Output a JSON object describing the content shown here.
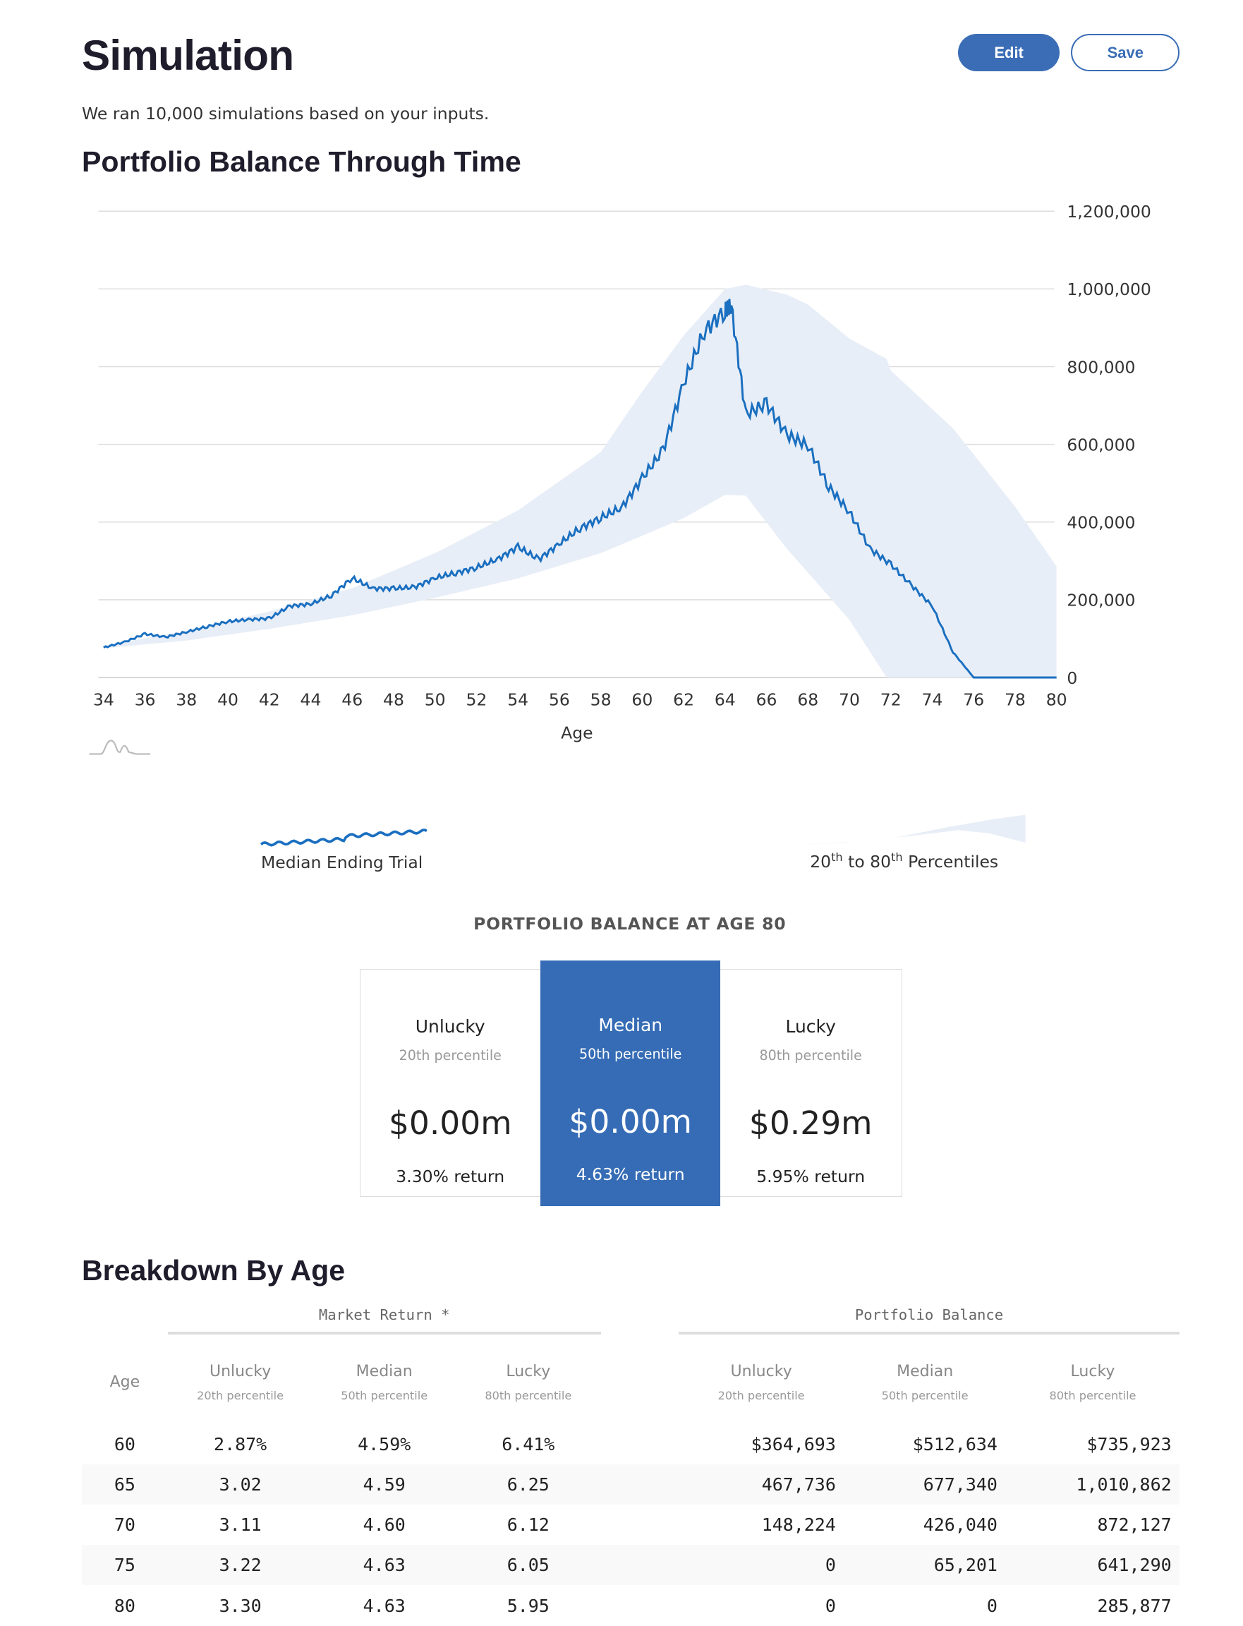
{
  "header": {
    "title": "Simulation",
    "edit_label": "Edit",
    "save_label": "Save",
    "subtitle": "We ran 10,000 simulations based on your inputs."
  },
  "colors": {
    "accent": "#3a6db6",
    "median_line": "#1a6fc0",
    "band": "#e8eef7",
    "card_highlight": "#356cb5"
  },
  "chart_section": {
    "title": "Portfolio Balance Through Time"
  },
  "chart_data": {
    "type": "line",
    "xlabel": "Age",
    "ylabel": "",
    "xlim": [
      34,
      80
    ],
    "ylim": [
      0,
      1200000
    ],
    "x_ticks": [
      "34",
      "36",
      "38",
      "40",
      "42",
      "44",
      "46",
      "48",
      "50",
      "52",
      "54",
      "56",
      "58",
      "60",
      "62",
      "64",
      "66",
      "68",
      "70",
      "72",
      "74",
      "76",
      "78",
      "80"
    ],
    "y_ticks": [
      "0",
      "200,000",
      "400,000",
      "600,000",
      "800,000",
      "1,000,000",
      "1,200,000"
    ],
    "grid": true,
    "series": [
      {
        "name": "Median Ending Trial",
        "type": "line",
        "x": [
          34,
          35,
          36,
          37,
          38,
          39,
          40,
          41,
          42,
          43,
          44,
          45,
          46,
          47,
          48,
          49,
          50,
          51,
          52,
          53,
          54,
          55,
          56,
          57,
          58,
          59,
          60,
          61,
          62,
          63,
          64,
          64.3,
          65,
          66,
          67,
          68,
          69,
          70,
          71,
          72,
          73,
          74,
          75,
          76,
          77,
          78,
          79,
          80
        ],
        "y": [
          77000,
          91000,
          112000,
          104000,
          117000,
          131000,
          144000,
          149000,
          152000,
          184000,
          189000,
          211000,
          256000,
          229000,
          229000,
          232000,
          256000,
          269000,
          283000,
          304000,
          336000,
          304000,
          344000,
          384000,
          411000,
          437000,
          512634,
          584000,
          757000,
          891000,
          944000,
          955000,
          677340,
          704000,
          624000,
          597000,
          491000,
          426040,
          331000,
          291000,
          237000,
          184000,
          65201,
          0,
          0,
          0,
          0,
          0
        ]
      },
      {
        "name": "20th to 80th Percentiles",
        "type": "band",
        "x": [
          34,
          38,
          42,
          46,
          50,
          54,
          58,
          60,
          62,
          64,
          65,
          67,
          68,
          70,
          71.8,
          72,
          75,
          78,
          80
        ],
        "lower": [
          75000,
          95000,
          125000,
          160000,
          205000,
          255000,
          320000,
          364693,
          410000,
          470000,
          467736,
          330000,
          270000,
          148224,
          0,
          0,
          0,
          0,
          0
        ],
        "upper": [
          82000,
          120000,
          170000,
          230000,
          320000,
          430000,
          580000,
          735923,
          880000,
          1000000,
          1010862,
          985000,
          960000,
          872127,
          820000,
          790000,
          641290,
          440000,
          285877
        ]
      }
    ],
    "legend": {
      "placement": "bottom",
      "items": [
        "Median Ending Trial",
        "20th to 80th Percentiles"
      ]
    }
  },
  "legend": {
    "median_label": "Median Ending Trial",
    "band_pre": "20",
    "band_sup1": "th",
    "band_mid": " to 80",
    "band_sup2": "th",
    "band_post": " Percentiles"
  },
  "balance": {
    "title": "PORTFOLIO BALANCE AT AGE 80",
    "cards": [
      {
        "title": "Unlucky",
        "percentile": "20th percentile",
        "value": "$0.00m",
        "return": "3.30% return"
      },
      {
        "title": "Median",
        "percentile": "50th percentile",
        "value": "$0.00m",
        "return": "4.63% return"
      },
      {
        "title": "Lucky",
        "percentile": "80th percentile",
        "value": "$0.29m",
        "return": "5.95% return"
      }
    ]
  },
  "breakdown": {
    "title": "Breakdown By Age",
    "group_market": "Market Return *",
    "group_balance": "Portfolio Balance",
    "age_header": "Age",
    "cols": [
      {
        "t": "Unlucky",
        "p": "20th percentile"
      },
      {
        "t": "Median",
        "p": "50th percentile"
      },
      {
        "t": "Lucky",
        "p": "80th percentile"
      }
    ],
    "rows": [
      [
        "60",
        "2.87%",
        "4.59%",
        "6.41%",
        "$364,693",
        "$512,634",
        "$735,923"
      ],
      [
        "65",
        "3.02",
        "4.59",
        "6.25",
        "467,736",
        "677,340",
        "1,010,862"
      ],
      [
        "70",
        "3.11",
        "4.60",
        "6.12",
        "148,224",
        "426,040",
        "872,127"
      ],
      [
        "75",
        "3.22",
        "4.63",
        "6.05",
        "0",
        "65,201",
        "641,290"
      ],
      [
        "80",
        "3.30",
        "4.63",
        "5.95",
        "0",
        "0",
        "285,877"
      ]
    ]
  }
}
